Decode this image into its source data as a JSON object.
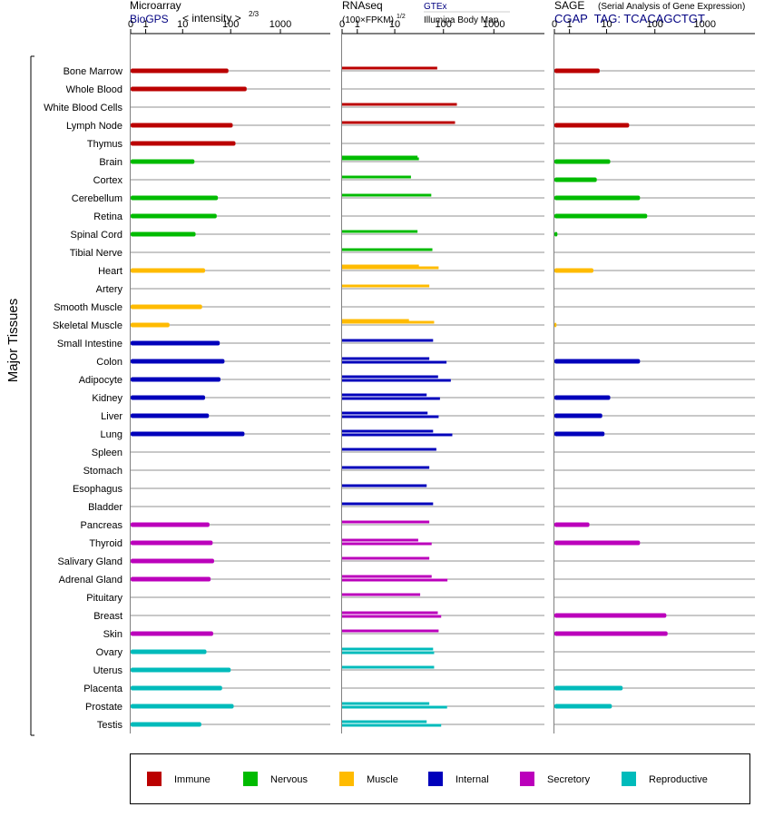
{
  "headers": {
    "microarray": {
      "title": "Microarray",
      "source": "BioGPS",
      "units_text": "< intensity >",
      "units_exp": "2/3"
    },
    "rnaseq": {
      "title": "RNAseq",
      "units_text": "(100×FPKM)",
      "units_exp": "1/2",
      "source_a": "GTEx",
      "source_b": "Illumina Body Map"
    },
    "sage": {
      "title": "SAGE",
      "subtitle": "(Serial Analysis of Gene Expression)",
      "tag_line": "CGAP  TAG: TCACAGCTGT"
    }
  },
  "y_axis_label": "Major Tissues",
  "legend": [
    {
      "name": "Immune",
      "color": "#bb0000"
    },
    {
      "name": "Nervous",
      "color": "#00bb00"
    },
    {
      "name": "Muscle",
      "color": "#ffbb00"
    },
    {
      "name": "Internal",
      "color": "#0000bb"
    },
    {
      "name": "Secretory",
      "color": "#bb00bb"
    },
    {
      "name": "Reproductive",
      "color": "#00bbbb"
    }
  ],
  "chart_data": {
    "type": "bar",
    "orientation": "horizontal",
    "x_scale": "log1p",
    "x_ticks": [
      "0",
      "1",
      "10",
      "100",
      "1000"
    ],
    "xlim": [
      0,
      1000
    ],
    "categories": [
      "Bone Marrow",
      "Whole Blood",
      "White Blood Cells",
      "Lymph Node",
      "Thymus",
      "Brain",
      "Cortex",
      "Cerebellum",
      "Retina",
      "Spinal Cord",
      "Tibial Nerve",
      "Heart",
      "Artery",
      "Smooth Muscle",
      "Skeletal Muscle",
      "Small Intestine",
      "Colon",
      "Adipocyte",
      "Kidney",
      "Liver",
      "Lung",
      "Spleen",
      "Stomach",
      "Esophagus",
      "Bladder",
      "Pancreas",
      "Thyroid",
      "Salivary Gland",
      "Adrenal Gland",
      "Pituitary",
      "Breast",
      "Skin",
      "Ovary",
      "Uterus",
      "Placenta",
      "Prostate",
      "Testis"
    ],
    "tissue_system": [
      "Immune",
      "Immune",
      "Immune",
      "Immune",
      "Immune",
      "Nervous",
      "Nervous",
      "Nervous",
      "Nervous",
      "Nervous",
      "Nervous",
      "Muscle",
      "Muscle",
      "Muscle",
      "Muscle",
      "Internal",
      "Internal",
      "Internal",
      "Internal",
      "Internal",
      "Internal",
      "Internal",
      "Internal",
      "Internal",
      "Internal",
      "Secretory",
      "Secretory",
      "Secretory",
      "Secretory",
      "Secretory",
      "Secretory",
      "Secretory",
      "Reproductive",
      "Reproductive",
      "Reproductive",
      "Reproductive",
      "Reproductive"
    ],
    "series": [
      {
        "name": "Microarray",
        "values": [
          90,
          210,
          null,
          110,
          125,
          18,
          null,
          55,
          52,
          19,
          null,
          30,
          null,
          26,
          5,
          60,
          75,
          62,
          30,
          36,
          190,
          null,
          null,
          null,
          null,
          37,
          43,
          46,
          39,
          null,
          null,
          44,
          32,
          100,
          67,
          115,
          25
        ]
      },
      {
        "name": "GTEx",
        "values": [
          null,
          null,
          null,
          null,
          null,
          30,
          null,
          null,
          null,
          null,
          null,
          32,
          null,
          null,
          20,
          null,
          null,
          null,
          null,
          null,
          null,
          null,
          null,
          null,
          null,
          null,
          null,
          null,
          null,
          null,
          null,
          null,
          null,
          null,
          null,
          null,
          null
        ]
      },
      {
        "name": "GTEx",
        "values": [
          75,
          null,
          185,
          170,
          null,
          32,
          22,
          57,
          null,
          30,
          60,
          80,
          52,
          null,
          65,
          62,
          52,
          78,
          46,
          48,
          62,
          72,
          52,
          46,
          62,
          52,
          31,
          52,
          58,
          34,
          77,
          80,
          62,
          65,
          null,
          52,
          46
        ]
      },
      {
        "name": "Illumina Body Map",
        "values": [
          null,
          null,
          null,
          null,
          null,
          null,
          null,
          null,
          null,
          null,
          null,
          null,
          null,
          null,
          null,
          null,
          115,
          140,
          85,
          80,
          150,
          null,
          null,
          null,
          null,
          null,
          58,
          null,
          120,
          null,
          90,
          null,
          65,
          null,
          null,
          118,
          90
        ]
      },
      {
        "name": "SAGE",
        "values": [
          7,
          null,
          null,
          30,
          null,
          12,
          6,
          50,
          70,
          0.15,
          null,
          5,
          null,
          null,
          0.1,
          null,
          50,
          null,
          12,
          8,
          9,
          null,
          null,
          null,
          null,
          4,
          50,
          null,
          null,
          null,
          170,
          180,
          null,
          null,
          22,
          13,
          null
        ]
      }
    ]
  }
}
